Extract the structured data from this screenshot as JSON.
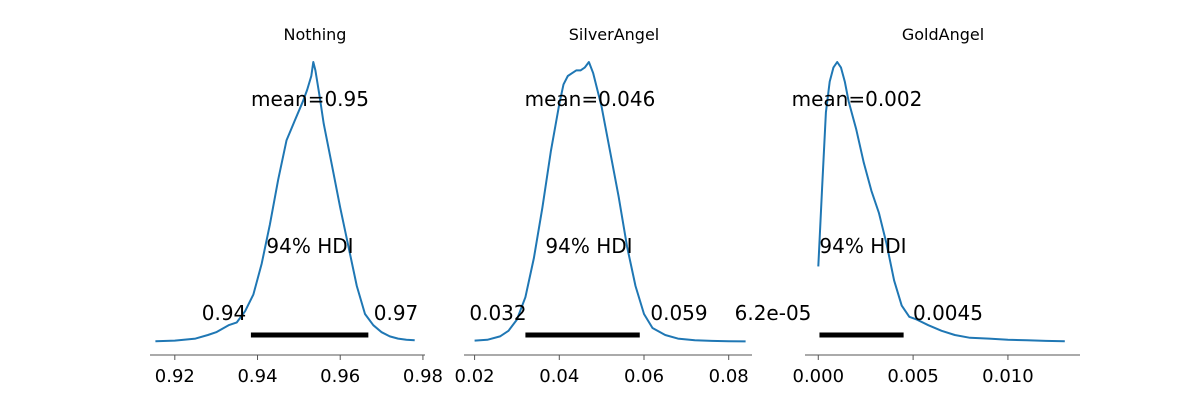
{
  "chart_data": [
    {
      "type": "line",
      "title": "Nothing",
      "mean_label": "mean=0.95",
      "hdi_label": "94% HDI",
      "hdi": [
        0.9384,
        0.9668
      ],
      "hdi_low_label": "0.94",
      "hdi_high_label": "0.97",
      "xlim": [
        0.914,
        0.9805
      ],
      "x_ticks": [
        0.92,
        0.94,
        0.96,
        0.98
      ],
      "x_tick_labels": [
        "0.92",
        "0.94",
        "0.96",
        "0.98"
      ],
      "density": {
        "x": [
          0.9153,
          0.92,
          0.925,
          0.928,
          0.93,
          0.933,
          0.935,
          0.937,
          0.939,
          0.941,
          0.943,
          0.945,
          0.947,
          0.949,
          0.951,
          0.952,
          0.953,
          0.9535,
          0.954,
          0.955,
          0.956,
          0.958,
          0.96,
          0.962,
          0.964,
          0.966,
          0.968,
          0.97,
          0.972,
          0.974,
          0.976,
          0.978
        ],
        "y": [
          0.003,
          0.005,
          0.012,
          0.025,
          0.035,
          0.06,
          0.07,
          0.11,
          0.17,
          0.28,
          0.42,
          0.58,
          0.72,
          0.79,
          0.86,
          0.9,
          0.95,
          1.0,
          0.97,
          0.88,
          0.78,
          0.63,
          0.48,
          0.34,
          0.2,
          0.1,
          0.06,
          0.035,
          0.02,
          0.012,
          0.008,
          0.006
        ]
      }
    },
    {
      "type": "line",
      "title": "SilverAngel",
      "mean_label": "mean=0.046",
      "hdi_label": "94% HDI",
      "hdi": [
        0.032,
        0.059
      ],
      "hdi_low_label": "0.032",
      "hdi_high_label": "0.059",
      "xlim": [
        0.0175,
        0.0855
      ],
      "x_ticks": [
        0.02,
        0.04,
        0.06,
        0.08
      ],
      "x_tick_labels": [
        "0.02",
        "0.04",
        "0.06",
        "0.08"
      ],
      "density": {
        "x": [
          0.02,
          0.023,
          0.026,
          0.028,
          0.03,
          0.032,
          0.034,
          0.036,
          0.038,
          0.04,
          0.041,
          0.042,
          0.043,
          0.044,
          0.045,
          0.046,
          0.047,
          0.048,
          0.05,
          0.052,
          0.054,
          0.056,
          0.058,
          0.06,
          0.062,
          0.065,
          0.068,
          0.072,
          0.076,
          0.08,
          0.084
        ],
        "y": [
          0.005,
          0.008,
          0.02,
          0.04,
          0.08,
          0.16,
          0.3,
          0.48,
          0.68,
          0.85,
          0.92,
          0.95,
          0.96,
          0.97,
          0.97,
          0.98,
          1.0,
          0.96,
          0.84,
          0.68,
          0.52,
          0.34,
          0.2,
          0.1,
          0.05,
          0.025,
          0.012,
          0.006,
          0.004,
          0.003,
          0.002
        ]
      }
    },
    {
      "type": "line",
      "title": "GoldAngel",
      "mean_label": "mean=0.002",
      "hdi_label": "94% HDI",
      "hdi": [
        6.2e-05,
        0.0045
      ],
      "hdi_low_label": "6.2e-05",
      "hdi_high_label": "0.0045",
      "xlim": [
        -0.0007,
        0.0138
      ],
      "x_ticks": [
        0.0,
        0.005,
        0.01
      ],
      "x_tick_labels": [
        "0.000",
        "0.005",
        "0.010"
      ],
      "density": {
        "x": [
          0.0,
          0.0002,
          0.0004,
          0.0006,
          0.0008,
          0.001,
          0.0012,
          0.0014,
          0.0016,
          0.0018,
          0.002,
          0.0024,
          0.0028,
          0.0032,
          0.0036,
          0.004,
          0.0044,
          0.0048,
          0.0052,
          0.0058,
          0.0065,
          0.0072,
          0.008,
          0.009,
          0.01,
          0.011,
          0.012,
          0.013
        ],
        "y": [
          0.27,
          0.55,
          0.82,
          0.93,
          0.98,
          1.0,
          0.98,
          0.93,
          0.86,
          0.81,
          0.76,
          0.64,
          0.54,
          0.46,
          0.35,
          0.22,
          0.13,
          0.09,
          0.08,
          0.06,
          0.04,
          0.025,
          0.015,
          0.012,
          0.008,
          0.006,
          0.004,
          0.003
        ]
      }
    }
  ]
}
